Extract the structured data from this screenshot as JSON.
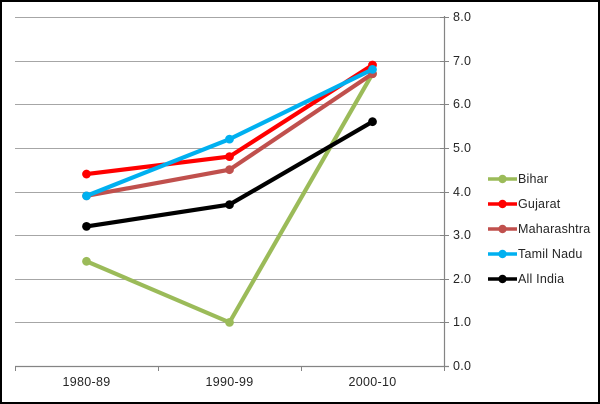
{
  "window": {
    "background_color": "#FFFFFF",
    "frame_border_color": "#000000"
  },
  "chart_data": {
    "type": "line",
    "title": "",
    "xlabel": "",
    "ylabel": "",
    "categories": [
      "1980-89",
      "1990-99",
      "2000-10"
    ],
    "series": [
      {
        "name": "Bihar",
        "color": "#9BBB59",
        "values": [
          2.4,
          1.0,
          6.7
        ]
      },
      {
        "name": "Gujarat",
        "color": "#FF0000",
        "values": [
          4.4,
          4.8,
          6.9
        ]
      },
      {
        "name": "Maharashtra",
        "color": "#C0504D",
        "values": [
          3.9,
          4.5,
          6.7
        ]
      },
      {
        "name": "Tamil Nadu",
        "color": "#00B0F0",
        "values": [
          3.9,
          5.2,
          6.8
        ]
      },
      {
        "name": "All India",
        "color": "#000000",
        "values": [
          3.2,
          3.7,
          5.6
        ]
      }
    ],
    "ylim": [
      0.0,
      8.0
    ],
    "y_tick_step": 1.0,
    "y_tick_labels": [
      "0.0",
      "1.0",
      "2.0",
      "3.0",
      "4.0",
      "5.0",
      "6.0",
      "7.0",
      "8.0"
    ],
    "y_axis_side": "right",
    "grid": "horizontal",
    "gridline_color": "#A6A6A6",
    "axis_line_color": "#848484",
    "tick_color": "#848484",
    "text_color": "#262626",
    "legend_position": "right-middle",
    "marker": "circle"
  }
}
